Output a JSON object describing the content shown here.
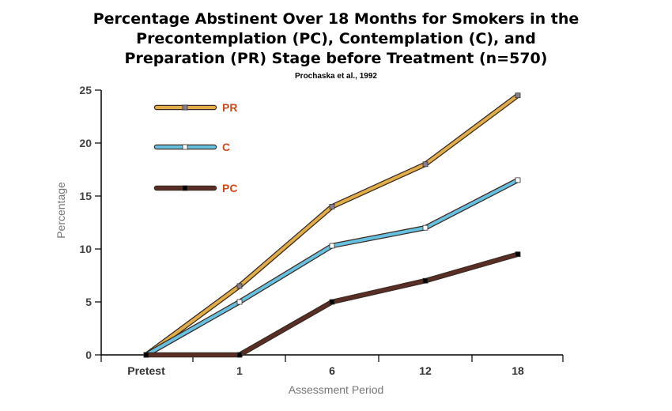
{
  "chart_data": {
    "type": "line",
    "title_lines": [
      "Percentage Abstinent Over 18 Months for Smokers in the",
      "Precontemplation (PC), Contemplation (C), and",
      "Preparation (PR) Stage before Treatment (n=570)"
    ],
    "subtitle": "Prochaska et al., 1992",
    "xlabel": "Assessment Period",
    "ylabel": "Percentage",
    "categories": [
      "Pretest",
      "1",
      "6",
      "12",
      "18"
    ],
    "y_ticks": [
      "0",
      "5",
      "10",
      "15",
      "20",
      "25"
    ],
    "ylim": [
      0,
      25
    ],
    "grid": false,
    "legend_position": "top-left",
    "series": [
      {
        "name": "PR",
        "values": [
          0,
          6.5,
          14,
          18,
          24.5
        ],
        "color": "#e0ad48",
        "marker": "#8a7f8c"
      },
      {
        "name": "C",
        "values": [
          0,
          5,
          10.3,
          12,
          16.5
        ],
        "color": "#66c0e0",
        "marker": "#ffffff"
      },
      {
        "name": "PC",
        "values": [
          0,
          0,
          5,
          7,
          9.5
        ],
        "color": "#5a2e24",
        "marker": "#000000"
      }
    ]
  }
}
